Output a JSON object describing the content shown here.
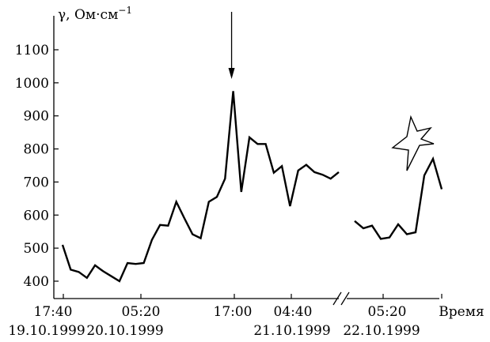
{
  "chart_data": {
    "type": "line",
    "ylabel": "γ, Ом·см⁻¹",
    "ylabel_main": "γ, Ом",
    "ylabel_unit": "·см",
    "ylabel_exp": "−1",
    "yticks": [
      400,
      500,
      600,
      700,
      800,
      900,
      1000,
      1100
    ],
    "ylim": [
      370,
      1180
    ],
    "xlabel_end": "Время",
    "x_tick_labels": [
      {
        "time": "17:40",
        "date": "19.10.1999"
      },
      {
        "time": "05:20",
        "date": "20.10.1999"
      },
      {
        "time": "17:00",
        "date": ""
      },
      {
        "time": "04:40",
        "date": "21.10.1999"
      },
      {
        "time": "05:20",
        "date": "22.10.1999"
      }
    ],
    "x_axis_break": true,
    "arrow_marker_at_index": 14,
    "burst_symbol_near_segment": 2,
    "series": [
      {
        "values": [
          510,
          435,
          428,
          410,
          448,
          430,
          415,
          400,
          455,
          452,
          455,
          525,
          570,
          568,
          640,
          590,
          542,
          530,
          640,
          655,
          710,
          975,
          670,
          835,
          815,
          815,
          728,
          748,
          627,
          735,
          752,
          730,
          722,
          710,
          730
        ]
      },
      {
        "values": [
          582,
          560,
          568,
          528,
          532,
          572,
          542,
          548,
          720,
          770,
          678
        ]
      }
    ]
  }
}
